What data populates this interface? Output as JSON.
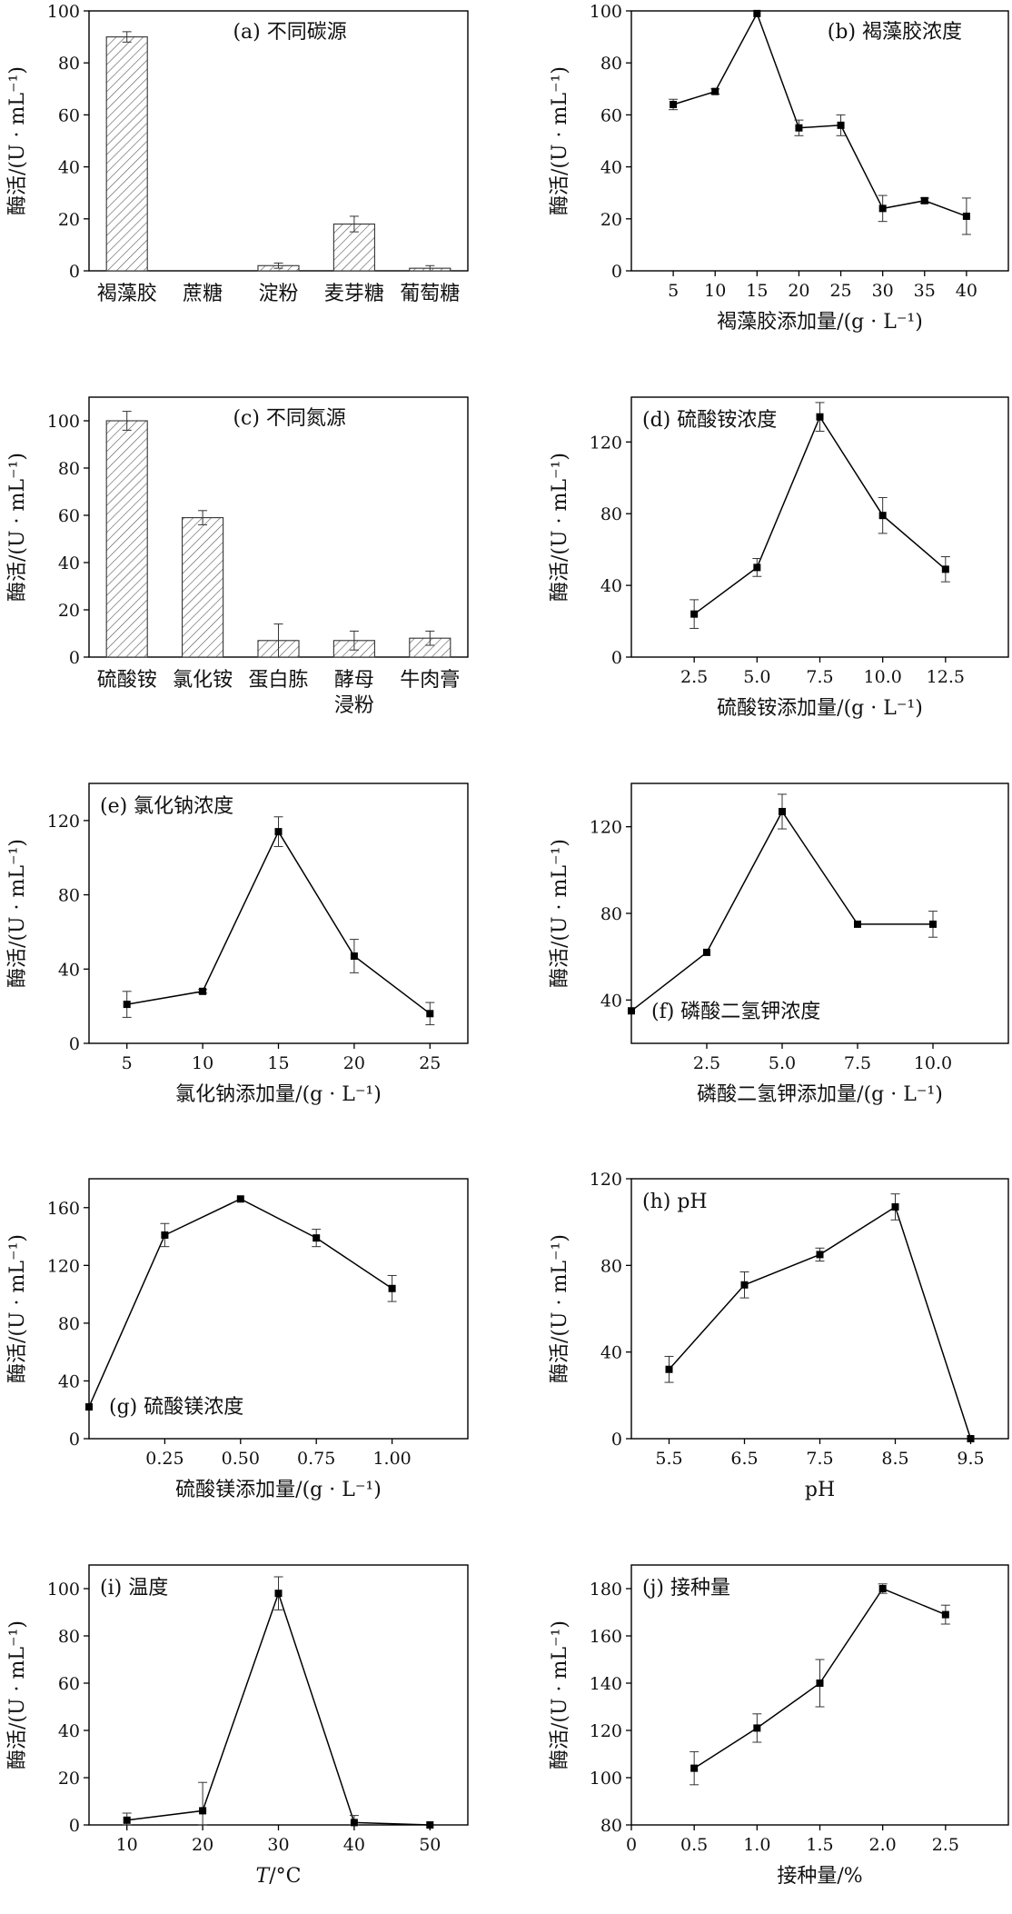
{
  "chart_data": [
    {
      "id": "a",
      "type": "bar",
      "title": "(a) 不同碳源",
      "ylabel": "酶活/(U · mL⁻¹)",
      "xlabel": "",
      "ylim": [
        0,
        100
      ],
      "yticks": [
        0,
        20,
        40,
        60,
        80,
        100
      ],
      "categories": [
        "褐藻胶",
        "蔗糖",
        "淀粉",
        "麦芽糖",
        "葡萄糖"
      ],
      "values": [
        90,
        0,
        2,
        18,
        1
      ],
      "errors": [
        2,
        0,
        1,
        3,
        1
      ],
      "title_pos": "top-right"
    },
    {
      "id": "b",
      "type": "line",
      "title": "(b) 褐藻胶浓度",
      "ylabel": "酶活/(U · mL⁻¹)",
      "xlabel": "褐藻胶添加量/(g · L⁻¹)",
      "xlim": [
        0,
        45
      ],
      "ylim": [
        0,
        100
      ],
      "xticks": [
        5,
        10,
        15,
        20,
        25,
        30,
        35,
        40
      ],
      "xtick_labels": [
        "5",
        "10",
        "15",
        "20",
        "25",
        "30",
        "35",
        "40"
      ],
      "yticks": [
        0,
        20,
        40,
        60,
        80,
        100
      ],
      "x": [
        5,
        10,
        15,
        20,
        25,
        30,
        35,
        40
      ],
      "y": [
        64,
        69,
        99,
        55,
        56,
        24,
        27,
        21
      ],
      "errors": [
        2,
        1,
        0,
        3,
        4,
        5,
        1,
        7
      ],
      "title_pos": "top-right"
    },
    {
      "id": "c",
      "type": "bar",
      "title": "(c) 不同氮源",
      "ylabel": "酶活/(U · mL⁻¹)",
      "xlabel": "",
      "ylim": [
        0,
        110
      ],
      "yticks": [
        0,
        20,
        40,
        60,
        80,
        100
      ],
      "categories": [
        "硫酸铵",
        "氯化铵",
        "蛋白胨",
        "酵母\n浸粉",
        "牛肉膏"
      ],
      "values": [
        100,
        59,
        7,
        7,
        8
      ],
      "errors": [
        4,
        3,
        7,
        4,
        3
      ],
      "title_pos": "top-right"
    },
    {
      "id": "d",
      "type": "line",
      "title": "(d) 硫酸铵浓度",
      "ylabel": "酶活/(U · mL⁻¹)",
      "xlabel": "硫酸铵添加量/(g · L⁻¹)",
      "xlim": [
        0,
        15
      ],
      "ylim": [
        0,
        145
      ],
      "xticks": [
        2.5,
        5,
        7.5,
        10,
        12.5
      ],
      "xtick_labels": [
        "2.5",
        "5.0",
        "7.5",
        "10.0",
        "12.5"
      ],
      "yticks": [
        0,
        40,
        80,
        120
      ],
      "x": [
        2.5,
        5,
        7.5,
        10,
        12.5
      ],
      "y": [
        24,
        50,
        134,
        79,
        49
      ],
      "errors": [
        8,
        5,
        8,
        10,
        7
      ],
      "title_pos": "top-left"
    },
    {
      "id": "e",
      "type": "line",
      "title": "(e) 氯化钠浓度",
      "ylabel": "酶活/(U · mL⁻¹)",
      "xlabel": "氯化钠添加量/(g · L⁻¹)",
      "xlim": [
        2.5,
        27.5
      ],
      "ylim": [
        0,
        140
      ],
      "xticks": [
        5,
        10,
        15,
        20,
        25
      ],
      "xtick_labels": [
        "5",
        "10",
        "15",
        "20",
        "25"
      ],
      "yticks": [
        0,
        40,
        80,
        120
      ],
      "x": [
        5,
        10,
        15,
        20,
        25
      ],
      "y": [
        21,
        28,
        114,
        47,
        16
      ],
      "errors": [
        7,
        1,
        8,
        9,
        6
      ],
      "title_pos": "top-left"
    },
    {
      "id": "f",
      "type": "line",
      "title": "(f) 磷酸二氢钾浓度",
      "ylabel": "酶活/(U · mL⁻¹)",
      "xlabel": "磷酸二氢钾添加量/(g · L⁻¹)",
      "xlim": [
        0,
        12.5
      ],
      "ylim": [
        20,
        140
      ],
      "xticks": [
        2.5,
        5,
        7.5,
        10
      ],
      "xtick_labels": [
        "2.5",
        "5.0",
        "7.5",
        "10.0"
      ],
      "yticks": [
        40,
        80,
        120
      ],
      "x": [
        0,
        2.5,
        5,
        7.5,
        10
      ],
      "y": [
        35,
        62,
        127,
        75,
        75
      ],
      "errors": [
        0,
        0,
        8,
        0,
        6
      ],
      "title_pos": "bottom-left"
    },
    {
      "id": "g",
      "type": "line",
      "title": "(g) 硫酸镁浓度",
      "ylabel": "酶活/(U · mL⁻¹)",
      "xlabel": "硫酸镁添加量/(g · L⁻¹)",
      "xlim": [
        0,
        1.25
      ],
      "ylim": [
        0,
        180
      ],
      "xticks": [
        0.25,
        0.5,
        0.75,
        1.0
      ],
      "xtick_labels": [
        "0.25",
        "0.50",
        "0.75",
        "1.00"
      ],
      "yticks": [
        0,
        40,
        80,
        120,
        160
      ],
      "x": [
        0,
        0.25,
        0.5,
        0.75,
        1.0
      ],
      "y": [
        22,
        141,
        166,
        139,
        104
      ],
      "errors": [
        0,
        8,
        0,
        6,
        9
      ],
      "title_pos": "bottom-left"
    },
    {
      "id": "h",
      "type": "line",
      "title": "(h) pH",
      "ylabel": "酶活/(U · mL⁻¹)",
      "xlabel": "pH",
      "xlim": [
        5,
        10
      ],
      "ylim": [
        0,
        120
      ],
      "xticks": [
        5.5,
        6.5,
        7.5,
        8.5,
        9.5
      ],
      "xtick_labels": [
        "5.5",
        "6.5",
        "7.5",
        "8.5",
        "9.5"
      ],
      "yticks": [
        0,
        40,
        80,
        120
      ],
      "x": [
        5.5,
        6.5,
        7.5,
        8.5,
        9.5
      ],
      "y": [
        32,
        71,
        85,
        107,
        0
      ],
      "errors": [
        6,
        6,
        3,
        6,
        0
      ],
      "title_pos": "top-left"
    },
    {
      "id": "i",
      "type": "line",
      "title": "(i) 温度",
      "ylabel": "酶活/(U · mL⁻¹)",
      "xlabel": "T/°C",
      "xlim": [
        5,
        55
      ],
      "ylim": [
        0,
        110
      ],
      "xticks": [
        10,
        20,
        30,
        40,
        50
      ],
      "xtick_labels": [
        "10",
        "20",
        "30",
        "40",
        "50"
      ],
      "yticks": [
        0,
        20,
        40,
        60,
        80,
        100
      ],
      "x": [
        10,
        20,
        30,
        40,
        50
      ],
      "y": [
        2,
        6,
        98,
        1,
        0
      ],
      "errors": [
        3,
        12,
        7,
        3,
        0
      ],
      "title_pos": "top-left"
    },
    {
      "id": "j",
      "type": "line",
      "title": "(j) 接种量",
      "ylabel": "酶活/(U · mL⁻¹)",
      "xlabel": "接种量/%",
      "xlim": [
        0,
        3
      ],
      "ylim": [
        80,
        190
      ],
      "xticks": [
        0,
        0.5,
        1.0,
        1.5,
        2.0,
        2.5
      ],
      "xtick_labels": [
        "0",
        "0.5",
        "1.0",
        "1.5",
        "2.0",
        "2.5"
      ],
      "yticks": [
        80,
        100,
        120,
        140,
        160,
        180
      ],
      "x": [
        0.5,
        1.0,
        1.5,
        2.0,
        2.5
      ],
      "y": [
        104,
        121,
        140,
        180,
        169
      ],
      "errors": [
        7,
        6,
        10,
        2,
        4
      ],
      "title_pos": "top-left"
    }
  ]
}
